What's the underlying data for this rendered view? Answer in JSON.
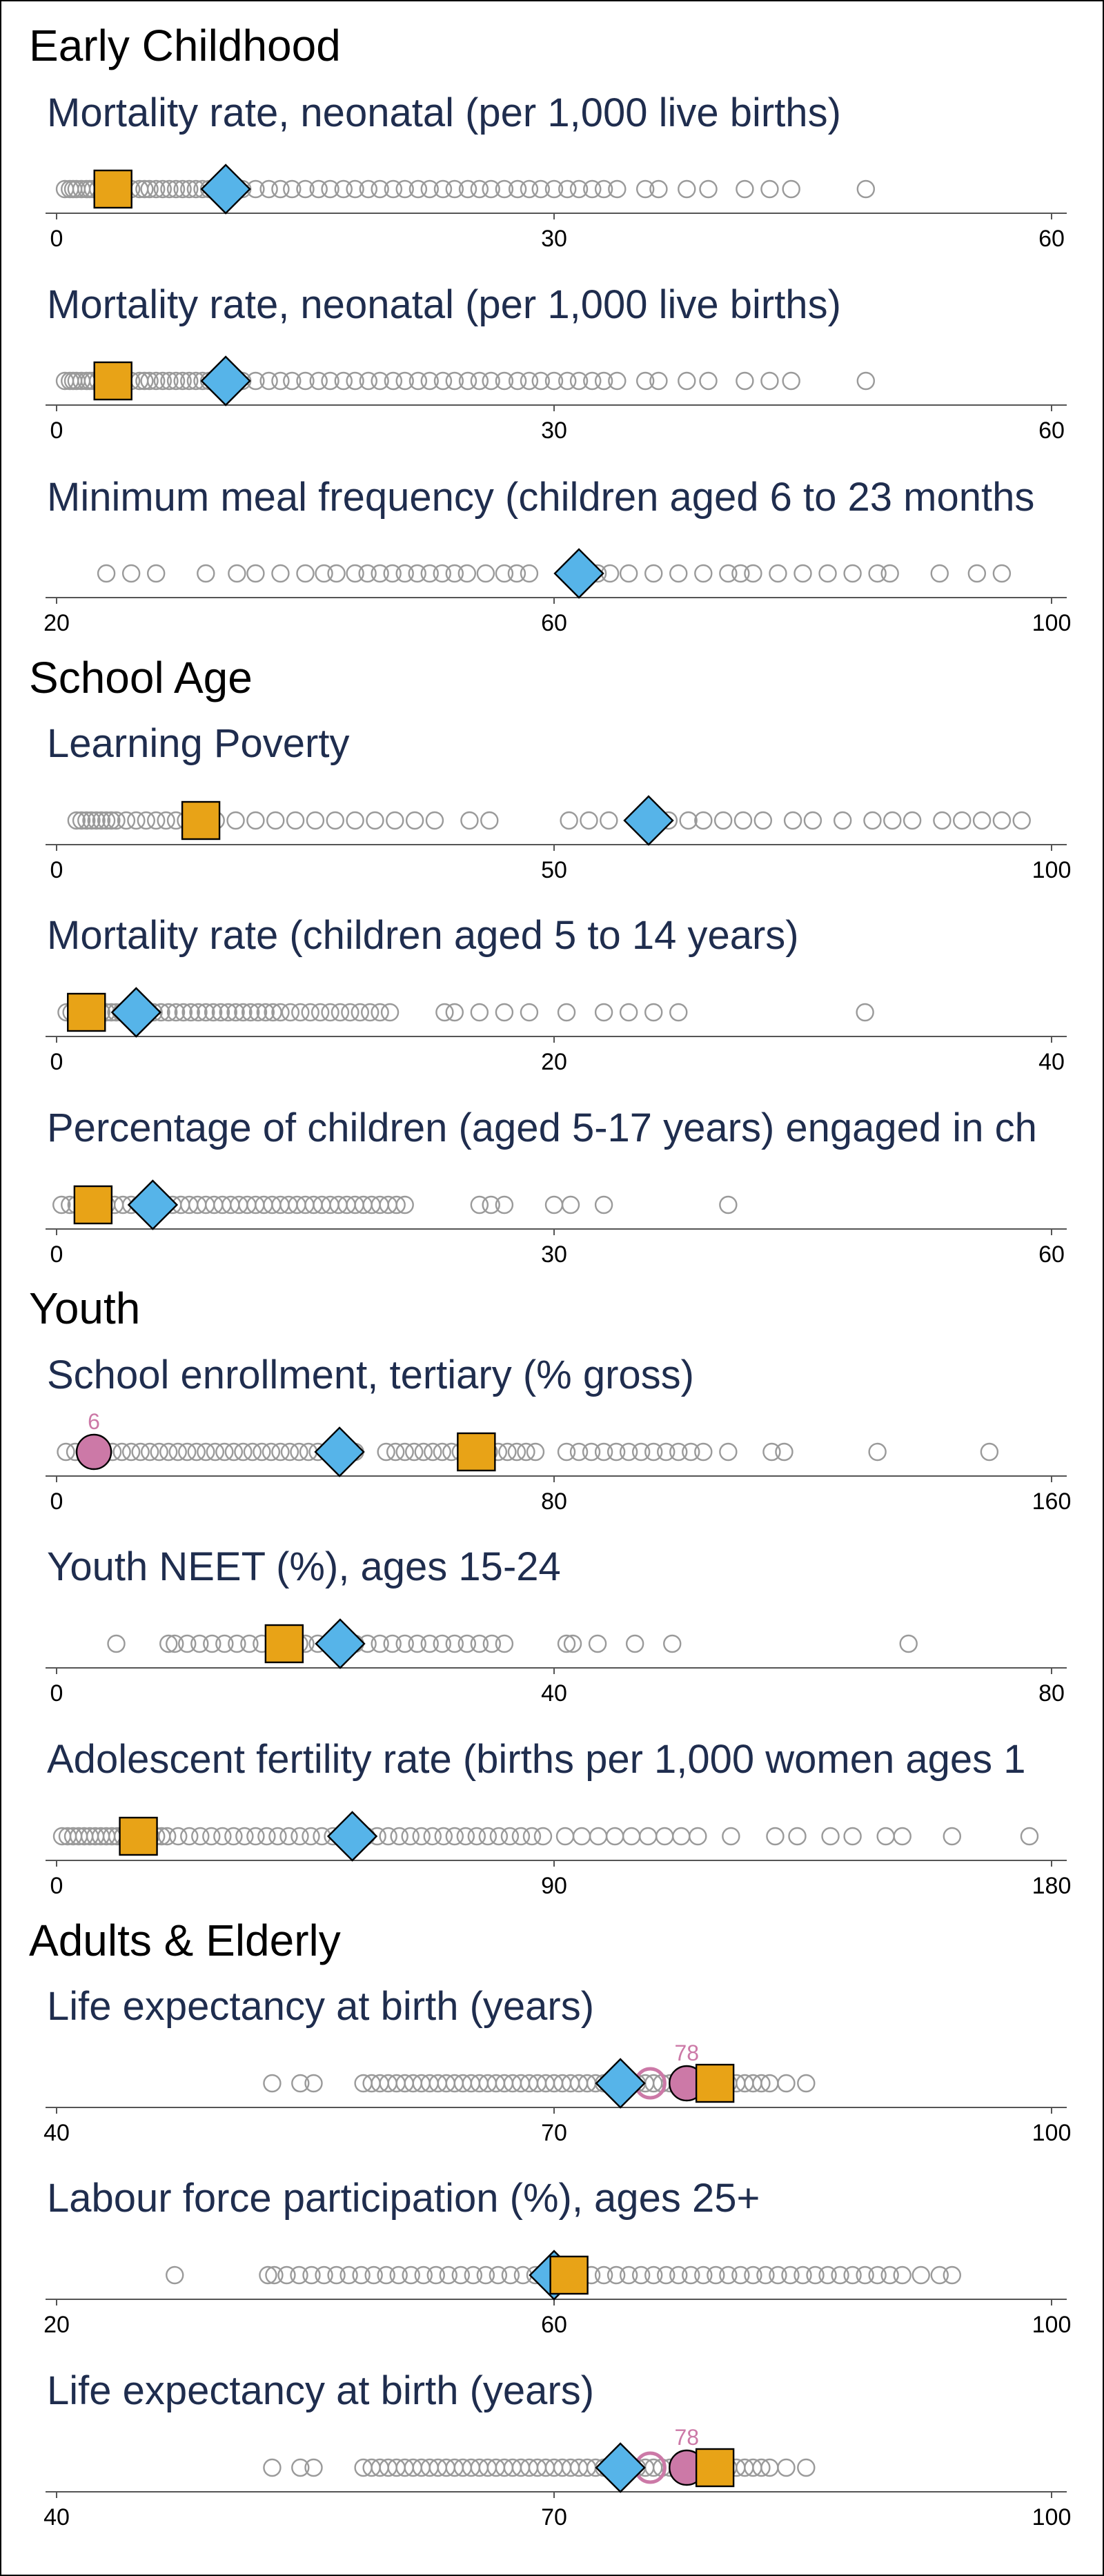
{
  "colors": {
    "background": "#ffffff",
    "axis": "#555555",
    "title": "#1f2d4e",
    "other_marker": "#9a9a9a",
    "square_marker": "#e8a317",
    "diamond_marker": "#56b4e9",
    "circle_marker": "#cc79a7"
  },
  "sections": [
    {
      "title": "Early Childhood",
      "panels": [
        {
          "title": "Mortality rate, neonatal (per 1,000 live births)",
          "xlim": [
            0,
            60
          ],
          "ticks": [
            "0",
            "30",
            "60"
          ]
        },
        {
          "title": "Mortality rate, neonatal (per 1,000 live births)",
          "xlim": [
            0,
            60
          ],
          "ticks": [
            "0",
            "30",
            "60"
          ]
        },
        {
          "title": "Minimum meal frequency (children aged 6 to 23 months",
          "xlim": [
            20,
            100
          ],
          "ticks": [
            "20",
            "60",
            "100"
          ]
        }
      ]
    },
    {
      "title": "School Age",
      "panels": [
        {
          "title": "Learning Poverty",
          "xlim": [
            0,
            100
          ],
          "ticks": [
            "0",
            "50",
            "100"
          ]
        },
        {
          "title": "Mortality rate (children aged 5 to 14 years)",
          "xlim": [
            0,
            40
          ],
          "ticks": [
            "0",
            "20",
            "40"
          ]
        },
        {
          "title": "Percentage of children (aged 5-17 years) engaged in ch",
          "xlim": [
            0,
            60
          ],
          "ticks": [
            "0",
            "30",
            "60"
          ]
        }
      ]
    },
    {
      "title": "Youth",
      "panels": [
        {
          "title": "School enrollment, tertiary (% gross)",
          "xlim": [
            0,
            160
          ],
          "ticks": [
            "0",
            "80",
            "160"
          ]
        },
        {
          "title": "Youth NEET (%), ages 15-24",
          "xlim": [
            0,
            80
          ],
          "ticks": [
            "0",
            "40",
            "80"
          ]
        },
        {
          "title": "Adolescent fertility rate (births per 1,000 women ages 1",
          "xlim": [
            0,
            180
          ],
          "ticks": [
            "0",
            "90",
            "180"
          ]
        }
      ]
    },
    {
      "title": "Adults & Elderly",
      "panels": [
        {
          "title": "Life expectancy at birth (years)",
          "xlim": [
            40,
            100
          ],
          "ticks": [
            "40",
            "70",
            "100"
          ]
        },
        {
          "title": "Labour force participation (%), ages 25+",
          "xlim": [
            20,
            100
          ],
          "ticks": [
            "20",
            "60",
            "100"
          ]
        },
        {
          "title": "Life expectancy at birth (years)",
          "xlim": [
            40,
            100
          ],
          "ticks": [
            "40",
            "70",
            "100"
          ]
        }
      ]
    }
  ],
  "chart_data": [
    {
      "type": "scatter",
      "title": "Mortality rate, neonatal (per 1,000 live births)",
      "xlim": [
        0,
        60
      ],
      "ticks": [
        0,
        30,
        60
      ],
      "others": [
        0.5,
        0.8,
        1.0,
        1.2,
        1.5,
        1.8,
        2.0,
        2.2,
        2.5,
        2.8,
        3.0,
        3.2,
        3.5,
        3.8,
        4.0,
        4.5,
        5.0,
        5.3,
        5.6,
        6.0,
        6.4,
        6.8,
        7.2,
        7.6,
        8.0,
        8.4,
        8.8,
        9.2,
        9.8,
        10.5,
        11.2,
        12.0,
        12.8,
        13.5,
        14.2,
        15.0,
        15.8,
        16.5,
        17.3,
        18.0,
        18.8,
        19.5,
        20.3,
        21.0,
        21.8,
        22.5,
        23.3,
        24.0,
        24.8,
        25.5,
        26.2,
        27.0,
        27.8,
        28.5,
        29.2,
        30.0,
        30.8,
        31.5,
        32.3,
        33.0,
        33.8,
        35.5,
        36.3,
        38.0,
        39.3,
        41.5,
        43.0,
        44.3,
        48.8
      ],
      "square": 3.4,
      "diamond": 10.2
    },
    {
      "type": "scatter",
      "title": "Mortality rate, neonatal (per 1,000 live births)",
      "xlim": [
        0,
        60
      ],
      "ticks": [
        0,
        30,
        60
      ],
      "others": [
        0.5,
        0.8,
        1.0,
        1.2,
        1.5,
        1.8,
        2.0,
        2.2,
        2.5,
        2.8,
        3.0,
        3.2,
        3.5,
        3.8,
        4.0,
        4.5,
        5.0,
        5.3,
        5.6,
        6.0,
        6.4,
        6.8,
        7.2,
        7.6,
        8.0,
        8.4,
        8.8,
        9.2,
        9.8,
        10.5,
        11.2,
        12.0,
        12.8,
        13.5,
        14.2,
        15.0,
        15.8,
        16.5,
        17.3,
        18.0,
        18.8,
        19.5,
        20.3,
        21.0,
        21.8,
        22.5,
        23.3,
        24.0,
        24.8,
        25.5,
        26.2,
        27.0,
        27.8,
        28.5,
        29.2,
        30.0,
        30.8,
        31.5,
        32.3,
        33.0,
        33.8,
        35.5,
        36.3,
        38.0,
        39.3,
        41.5,
        43.0,
        44.3,
        48.8
      ],
      "square": 3.4,
      "diamond": 10.2
    },
    {
      "type": "scatter",
      "title": "Minimum meal frequency (children aged 6 to 23 months",
      "xlim": [
        20,
        100
      ],
      "ticks": [
        20,
        60,
        100
      ],
      "others": [
        24.0,
        26.0,
        28.0,
        32.0,
        34.5,
        36.0,
        38.0,
        40.0,
        41.5,
        42.5,
        44.0,
        45.0,
        46.0,
        47.0,
        48.0,
        49.0,
        50.0,
        51.0,
        52.0,
        53.0,
        54.5,
        56.0,
        57.0,
        58.0,
        61.5,
        63.5,
        64.5,
        66.0,
        68.0,
        70.0,
        72.0,
        74.0,
        75.0,
        76.0,
        78.0,
        80.0,
        82.0,
        84.0,
        86.0,
        87.0,
        91.0,
        94.0,
        96.0
      ],
      "diamond": 62.0
    },
    {
      "type": "scatter",
      "title": "Learning Poverty",
      "xlim": [
        0,
        100
      ],
      "ticks": [
        0,
        50,
        100
      ],
      "others": [
        2.0,
        2.5,
        3.0,
        3.5,
        4.0,
        4.5,
        5.0,
        5.5,
        6.0,
        7.0,
        8.0,
        9.0,
        10.0,
        11.0,
        12.0,
        13.0,
        16.0,
        18.0,
        20.0,
        22.0,
        24.0,
        26.0,
        28.0,
        30.0,
        32.0,
        34.0,
        36.0,
        38.0,
        41.5,
        43.5,
        51.5,
        53.5,
        55.5,
        61.5,
        63.5,
        65.0,
        67.0,
        69.0,
        71.0,
        74.0,
        76.0,
        79.0,
        82.0,
        84.0,
        86.0,
        89.0,
        91.0,
        93.0,
        95.0,
        97.0
      ],
      "square": 14.5,
      "diamond": 59.5
    },
    {
      "type": "scatter",
      "title": "Mortality rate (children aged 5 to 14 years)",
      "xlim": [
        0,
        40
      ],
      "ticks": [
        0,
        20,
        40
      ],
      "others": [
        0.4,
        0.6,
        0.8,
        1.0,
        1.2,
        1.4,
        1.6,
        1.8,
        2.0,
        2.2,
        2.4,
        2.6,
        2.8,
        3.0,
        3.3,
        3.6,
        3.9,
        4.2,
        4.5,
        4.8,
        5.1,
        5.4,
        5.7,
        6.0,
        6.3,
        6.6,
        6.9,
        7.2,
        7.5,
        7.8,
        8.1,
        8.4,
        8.7,
        9.0,
        9.4,
        9.8,
        10.2,
        10.6,
        11.0,
        11.4,
        11.8,
        12.2,
        12.6,
        13.0,
        13.4,
        15.6,
        16.0,
        17.0,
        18.0,
        19.0,
        20.5,
        22.0,
        23.0,
        24.0,
        25.0,
        32.5
      ],
      "square": 1.2,
      "diamond": 3.2
    },
    {
      "type": "scatter",
      "title": "Percentage of children (aged 5-17 years) engaged in ch",
      "xlim": [
        0,
        60
      ],
      "ticks": [
        0,
        30,
        60
      ],
      "others": [
        0.3,
        0.8,
        1.2,
        1.6,
        2.0,
        2.5,
        3.0,
        3.5,
        4.0,
        4.5,
        5.0,
        5.5,
        6.0,
        6.5,
        7.0,
        7.5,
        8.0,
        8.5,
        9.0,
        9.5,
        10.0,
        10.5,
        11.0,
        11.5,
        12.0,
        12.5,
        13.0,
        13.5,
        14.0,
        14.5,
        15.0,
        15.5,
        16.0,
        16.5,
        17.0,
        17.5,
        18.0,
        18.5,
        19.0,
        19.5,
        20.0,
        20.5,
        21.0,
        25.5,
        26.2,
        27.0,
        30.0,
        31.0,
        33.0,
        40.5
      ],
      "square": 2.2,
      "diamond": 5.8
    },
    {
      "type": "scatter",
      "title": "School enrollment, tertiary (% gross)",
      "xlim": [
        0,
        160
      ],
      "ticks": [
        0,
        80,
        160
      ],
      "others": [
        1.5,
        3.0,
        4.5,
        6.0,
        7.5,
        9.0,
        10.5,
        12.0,
        13.5,
        15.0,
        16.5,
        18.0,
        19.5,
        21.0,
        22.5,
        24.0,
        25.5,
        27.0,
        28.5,
        30.0,
        31.5,
        33.0,
        34.5,
        36.0,
        37.5,
        39.0,
        40.5,
        42.0,
        43.5,
        45.0,
        46.5,
        48.0,
        53.0,
        54.5,
        56.0,
        57.5,
        59.0,
        60.5,
        62.0,
        63.5,
        65.0,
        66.5,
        68.0,
        69.5,
        71.0,
        72.5,
        74.0,
        75.5,
        77.0,
        82.0,
        84.0,
        86.0,
        88.0,
        90.0,
        92.0,
        94.0,
        96.0,
        98.0,
        100.0,
        102.0,
        104.0,
        108.0,
        115.0,
        117.0,
        132.0,
        150.0
      ],
      "square": 67.5,
      "diamond": 45.5,
      "circle": 6,
      "circle_label": "6"
    },
    {
      "type": "scatter",
      "title": "Youth NEET (%), ages 15-24",
      "xlim": [
        0,
        80
      ],
      "ticks": [
        0,
        40,
        80
      ],
      "others": [
        4.8,
        9.0,
        9.5,
        10.5,
        11.5,
        12.5,
        13.5,
        14.5,
        15.5,
        16.5,
        17.5,
        18.5,
        19.5,
        20.0,
        21.0,
        22.0,
        23.0,
        24.0,
        25.0,
        26.0,
        27.0,
        28.0,
        29.0,
        30.0,
        31.0,
        32.0,
        33.0,
        34.0,
        35.0,
        36.0,
        41.0,
        41.5,
        43.5,
        46.5,
        49.5,
        68.5
      ],
      "square": 18.3,
      "diamond": 22.8
    },
    {
      "type": "scatter",
      "title": "Adolescent fertility rate (births per 1,000 women ages 1",
      "xlim": [
        0,
        180
      ],
      "ticks": [
        0,
        90,
        180
      ],
      "others": [
        1.0,
        2.0,
        3.0,
        4.0,
        5.0,
        6.0,
        7.0,
        8.0,
        9.0,
        10.0,
        11.0,
        12.0,
        13.0,
        14.0,
        15.0,
        16.0,
        17.0,
        18.0,
        19.0,
        20.0,
        22.0,
        24.0,
        26.0,
        28.0,
        30.0,
        32.0,
        34.0,
        36.0,
        38.0,
        40.0,
        42.0,
        44.0,
        46.0,
        48.0,
        50.0,
        52.0,
        54.0,
        56.0,
        58.0,
        60.0,
        62.0,
        64.0,
        66.0,
        68.0,
        70.0,
        72.0,
        74.0,
        76.0,
        78.0,
        80.0,
        82.0,
        84.0,
        86.0,
        88.0,
        92.0,
        95.0,
        98.0,
        101.0,
        104.0,
        107.0,
        110.0,
        113.0,
        116.0,
        122.0,
        130.0,
        134.0,
        140.0,
        144.0,
        150.0,
        153.0,
        162.0,
        176.0
      ],
      "square": 14.8,
      "diamond": 53.5
    },
    {
      "type": "scatter",
      "title": "Life expectancy at birth (years)",
      "xlim": [
        40,
        100
      ],
      "ticks": [
        40,
        70,
        100
      ],
      "others": [
        53.0,
        54.7,
        55.5,
        58.5,
        59.0,
        59.5,
        60.0,
        60.5,
        61.0,
        61.5,
        62.0,
        62.5,
        63.0,
        63.5,
        64.0,
        64.5,
        65.0,
        65.5,
        66.0,
        66.5,
        67.0,
        67.5,
        68.0,
        68.5,
        69.0,
        69.5,
        70.0,
        70.5,
        71.0,
        71.5,
        72.0,
        72.5,
        73.0,
        73.5,
        74.0,
        74.5,
        75.0,
        75.5,
        76.0,
        76.5,
        77.0,
        77.5,
        78.0,
        78.5,
        79.0,
        79.5,
        80.0,
        80.5,
        81.0,
        81.5,
        82.0,
        82.5,
        83.0,
        84.0,
        85.2
      ],
      "square": 79.7,
      "diamond": 74.0,
      "circle": 78,
      "circle_label": "78",
      "hollow_circle": 75.8
    },
    {
      "type": "scatter",
      "title": "Labour force participation (%), ages 25+",
      "xlim": [
        20,
        100
      ],
      "ticks": [
        20,
        60,
        100
      ],
      "others": [
        29.5,
        37.0,
        37.5,
        38.5,
        39.5,
        40.5,
        41.5,
        42.5,
        43.5,
        44.5,
        45.5,
        46.5,
        47.5,
        48.5,
        49.5,
        50.5,
        51.5,
        52.5,
        53.5,
        54.5,
        55.5,
        56.5,
        57.5,
        58.5,
        59.0,
        61.0,
        62.0,
        63.0,
        64.0,
        65.0,
        66.0,
        67.0,
        68.0,
        69.0,
        70.0,
        71.0,
        72.0,
        73.0,
        74.0,
        75.0,
        76.0,
        77.0,
        78.0,
        79.0,
        80.0,
        81.0,
        82.0,
        83.0,
        84.0,
        85.0,
        86.0,
        87.0,
        88.0,
        89.5,
        91.0,
        92.0
      ],
      "square": 61.2,
      "diamond": 60.0
    },
    {
      "type": "scatter",
      "title": "Life expectancy at birth (years)",
      "xlim": [
        40,
        100
      ],
      "ticks": [
        40,
        70,
        100
      ],
      "others": [
        53.0,
        54.7,
        55.5,
        58.5,
        59.0,
        59.5,
        60.0,
        60.5,
        61.0,
        61.5,
        62.0,
        62.5,
        63.0,
        63.5,
        64.0,
        64.5,
        65.0,
        65.5,
        66.0,
        66.5,
        67.0,
        67.5,
        68.0,
        68.5,
        69.0,
        69.5,
        70.0,
        70.5,
        71.0,
        71.5,
        72.0,
        72.5,
        73.0,
        73.5,
        74.0,
        74.5,
        75.0,
        75.5,
        76.0,
        76.5,
        77.0,
        77.5,
        78.0,
        78.5,
        79.0,
        79.5,
        80.0,
        80.5,
        81.0,
        81.5,
        82.0,
        82.5,
        83.0,
        84.0,
        85.2
      ],
      "square": 79.7,
      "diamond": 74.0,
      "circle": 78,
      "circle_label": "78",
      "hollow_circle": 75.8
    }
  ]
}
